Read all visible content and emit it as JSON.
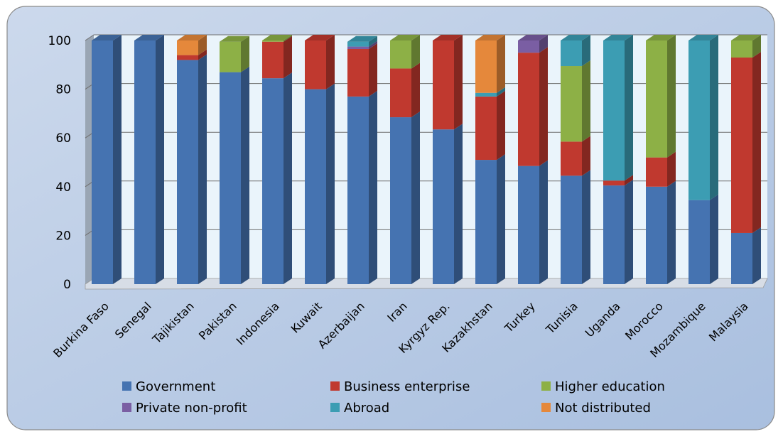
{
  "chart_data": {
    "type": "bar",
    "stacked": true,
    "categories": [
      "Burkina Faso",
      "Senegal",
      "Tajikistan",
      "Pakistan",
      "Indonesia",
      "Kuwait",
      "Azerbaijan",
      "Iran",
      "Kyrgyz Rep.",
      "Kazakhstan",
      "Turkey",
      "Tunisia",
      "Uganda",
      "Morocco",
      "Mozambique",
      "Malaysia"
    ],
    "series": [
      {
        "name": "Government",
        "color": "#4573b1",
        "values": [
          100,
          100,
          92,
          87,
          84.5,
          80,
          77,
          68.5,
          63.5,
          51,
          48.5,
          44.5,
          40.5,
          40,
          34.5,
          21
        ]
      },
      {
        "name": "Business enterprise",
        "color": "#c0392f",
        "values": [
          0,
          0,
          2,
          0,
          15,
          20,
          19.5,
          20,
          36.5,
          26,
          46.5,
          14,
          2,
          12,
          0,
          72
        ]
      },
      {
        "name": "Higher education",
        "color": "#8db046",
        "values": [
          0,
          0,
          0,
          12.5,
          0.5,
          0,
          0,
          11.5,
          0,
          0,
          0,
          31,
          0,
          48,
          0,
          7
        ]
      },
      {
        "name": "Private non-profit",
        "color": "#7a5ea3",
        "values": [
          0,
          0,
          0,
          0,
          0,
          0,
          1,
          0,
          0,
          0,
          5,
          0,
          0,
          0,
          0,
          0
        ]
      },
      {
        "name": "Abroad",
        "color": "#3c9db3",
        "values": [
          0,
          0,
          0,
          0,
          0,
          0,
          2,
          0,
          0,
          1.5,
          0,
          10.5,
          57.5,
          0,
          65.5,
          0
        ]
      },
      {
        "name": "Not distributed",
        "color": "#e5883b",
        "values": [
          0,
          0,
          6,
          0,
          0,
          0,
          0,
          0,
          0,
          21.5,
          0,
          0,
          0,
          0,
          0,
          0
        ]
      }
    ],
    "yticks": [
      "0",
      "20",
      "40",
      "60",
      "80",
      "100"
    ],
    "ylim": [
      0,
      100
    ],
    "grid": true,
    "legend_position": "bottom",
    "title": "",
    "xlabel": "",
    "ylabel": ""
  }
}
